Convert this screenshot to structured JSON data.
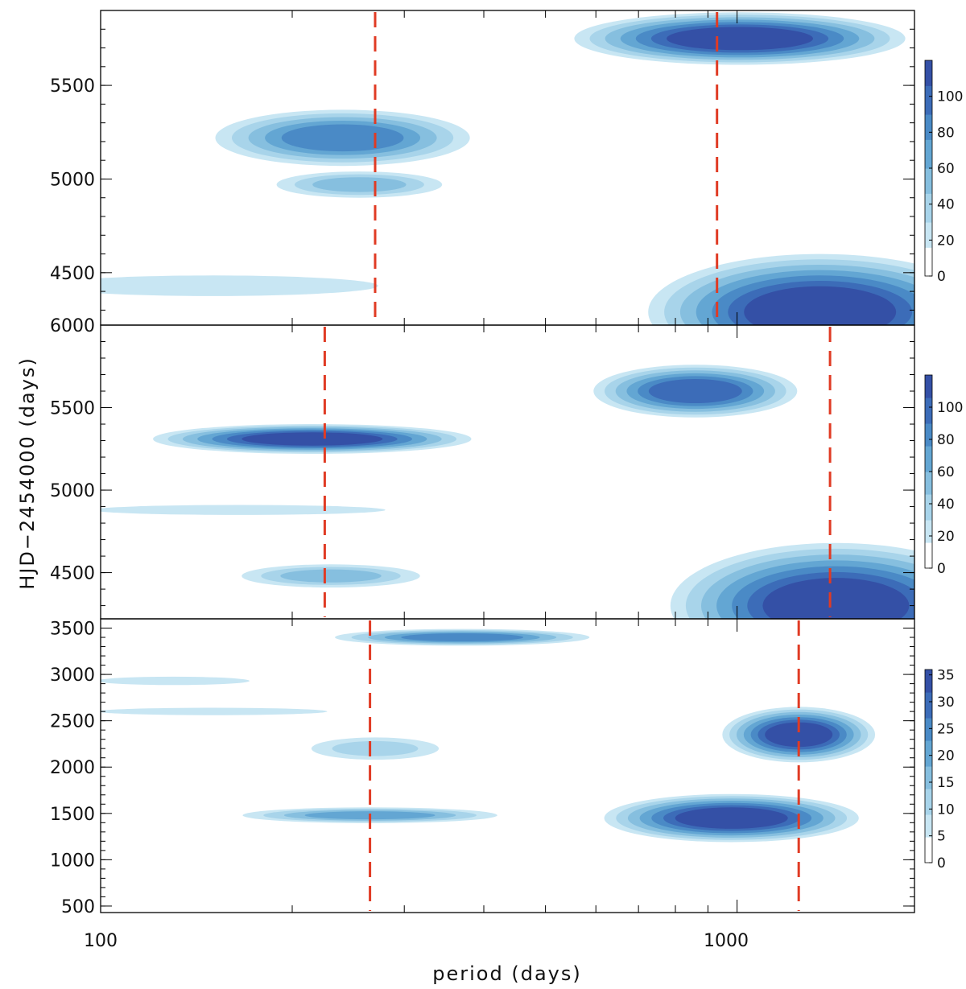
{
  "chart_data": {
    "type": "heatmap",
    "description": "Wavelet-style period vs time power maps, three stacked panels sharing a logarithmic period axis",
    "xlabel": "period (days)",
    "ylabel": "HJD−2454000 (days)",
    "xscale": "log",
    "xlim": [
      100,
      1900
    ],
    "x_tick_labels": [
      "100",
      "1000"
    ],
    "colors": {
      "levels": [
        "#ffffff",
        "#c8e6f3",
        "#a8d4ea",
        "#86bfdf",
        "#63a6d3",
        "#4a8ac6",
        "#3c6cb8",
        "#3450a6"
      ],
      "marker": "#e03b24"
    },
    "panels": [
      {
        "id": "top",
        "ylim": [
          4220,
          5900
        ],
        "y_ticks": [
          4500,
          5000,
          5500
        ],
        "y_tick_labels": [
          "4500",
          "5000",
          "5500"
        ],
        "colorbar": {
          "ticks": [
            0,
            20,
            40,
            60,
            80,
            100
          ],
          "labels": [
            "0",
            "20",
            "40",
            "60",
            "80",
            "100"
          ],
          "max": 120
        },
        "markers": [
          270,
          930
        ],
        "blobs": [
          {
            "period": 1350,
            "time": 4290,
            "rx": 0.27,
            "ry": 310,
            "level": 7
          },
          {
            "period": 1010,
            "time": 5750,
            "rx": 0.26,
            "ry": 140,
            "level": 7
          },
          {
            "period": 240,
            "time": 5220,
            "rx": 0.2,
            "ry": 150,
            "level": 5
          },
          {
            "period": 255,
            "time": 4970,
            "rx": 0.13,
            "ry": 70,
            "level": 3
          },
          {
            "period": 150,
            "time": 4430,
            "rx": 0.26,
            "ry": 55,
            "level": 1
          }
        ]
      },
      {
        "id": "middle",
        "ylim": [
          4220,
          6000
        ],
        "y_ticks": [
          4500,
          5000,
          5500,
          6000
        ],
        "y_tick_labels": [
          "4500",
          "5000",
          "5500",
          "6000"
        ],
        "colorbar": {
          "ticks": [
            0,
            20,
            40,
            60,
            80,
            100
          ],
          "labels": [
            "0",
            "20",
            "40",
            "60",
            "80",
            "100"
          ],
          "max": 120
        },
        "markers": [
          225,
          1400
        ],
        "blobs": [
          {
            "period": 1430,
            "time": 4300,
            "rx": 0.26,
            "ry": 380,
            "level": 7
          },
          {
            "period": 860,
            "time": 5600,
            "rx": 0.16,
            "ry": 160,
            "level": 6
          },
          {
            "period": 215,
            "time": 5310,
            "rx": 0.25,
            "ry": 90,
            "level": 7
          },
          {
            "period": 230,
            "time": 4480,
            "rx": 0.14,
            "ry": 70,
            "level": 3
          },
          {
            "period": 165,
            "time": 4880,
            "rx": 0.23,
            "ry": 30,
            "level": 1
          }
        ]
      },
      {
        "id": "bottom",
        "ylim": [
          430,
          3600
        ],
        "y_ticks": [
          500,
          1000,
          1500,
          2000,
          2500,
          3000,
          3500
        ],
        "y_tick_labels": [
          "500",
          "1000",
          "1500",
          "2000",
          "2500",
          "3000",
          "3500"
        ],
        "colorbar": {
          "ticks": [
            0,
            5,
            10,
            15,
            20,
            25,
            30,
            35
          ],
          "labels": [
            "0",
            "5",
            "10",
            "15",
            "20",
            "25",
            "30",
            "35"
          ],
          "max": 36
        },
        "markers": [
          265,
          1250
        ],
        "blobs": [
          {
            "period": 1250,
            "time": 2350,
            "rx": 0.12,
            "ry": 300,
            "level": 7
          },
          {
            "period": 980,
            "time": 1450,
            "rx": 0.2,
            "ry": 260,
            "level": 7
          },
          {
            "period": 370,
            "time": 3400,
            "rx": 0.2,
            "ry": 90,
            "level": 5
          },
          {
            "period": 265,
            "time": 1480,
            "rx": 0.2,
            "ry": 85,
            "level": 4
          },
          {
            "period": 270,
            "time": 2200,
            "rx": 0.1,
            "ry": 120,
            "level": 2
          },
          {
            "period": 150,
            "time": 2600,
            "rx": 0.18,
            "ry": 40,
            "level": 1
          },
          {
            "period": 130,
            "time": 2930,
            "rx": 0.12,
            "ry": 45,
            "level": 1
          }
        ]
      }
    ]
  }
}
